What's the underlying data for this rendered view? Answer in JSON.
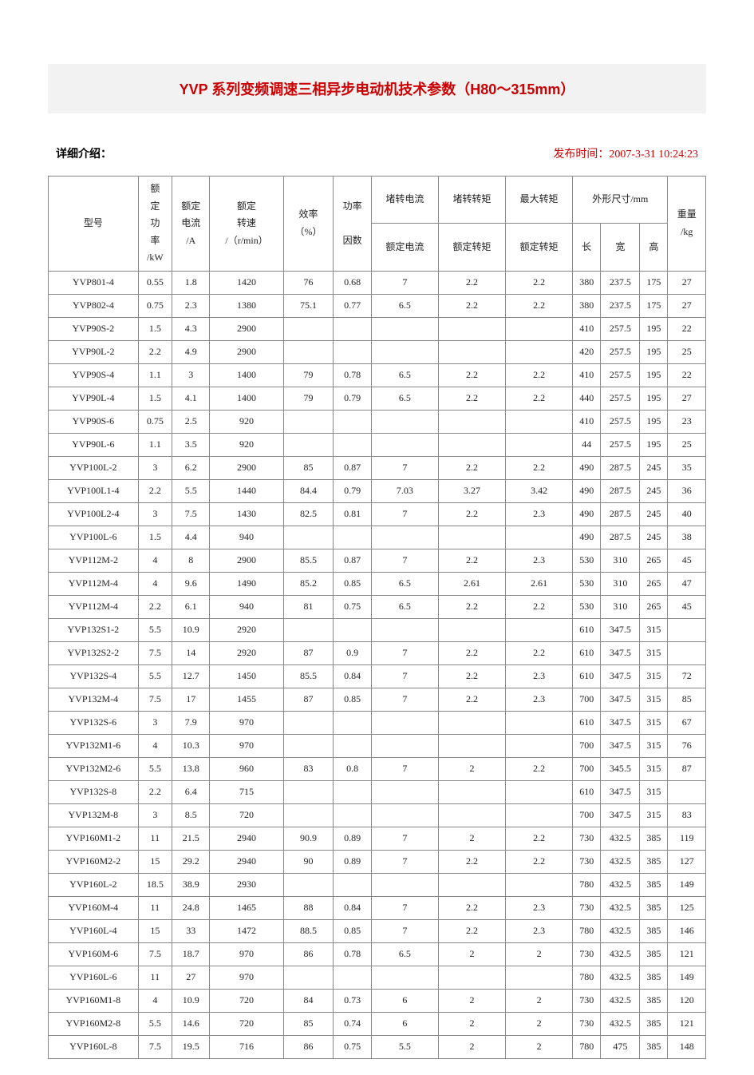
{
  "title": "YVP 系列变频调速三相异步电动机技术参数（H80～315mm）",
  "meta": {
    "detail_label": "详细介绍：",
    "publish_label": "发布时间：",
    "publish_time": "2007-3-31 10:24:23"
  },
  "colors": {
    "title_color": "#cc0000",
    "title_bg": "#f2f2f2",
    "meta_right_color": "#cc0000",
    "border_color": "#888888",
    "text_color": "#222222",
    "background": "#ffffff"
  },
  "fonts": {
    "title_fontsize": 18,
    "body_fontsize": 13,
    "table_fontsize": 12
  },
  "headers": {
    "model": "型号",
    "rated_power": "额定功率/kW",
    "rated_current": "额定电流/A",
    "rated_speed": "额定转速/（r/min）",
    "efficiency": "效率（%）",
    "power_factor": "功率因数",
    "locked_current_ratio": "堵转电流",
    "locked_torque_ratio": "堵转转矩",
    "max_torque_ratio": "最大转矩",
    "ratio_sub1": "额定电流",
    "ratio_sub2": "额定转矩",
    "ratio_sub3": "额定转矩",
    "dims": "外形尺寸/mm",
    "length": "长",
    "width": "宽",
    "height": "高",
    "weight": "重量/kg"
  },
  "rows": [
    {
      "model": "YVP801-4",
      "kw": "0.55",
      "a": "1.8",
      "rpm": "1420",
      "eff": "76",
      "pf": "0.68",
      "lc": "7",
      "lt": "2.2",
      "mt": "2.2",
      "l": "380",
      "w": "237.5",
      "h": "175",
      "kg": "27"
    },
    {
      "model": "YVP802-4",
      "kw": "0.75",
      "a": "2.3",
      "rpm": "1380",
      "eff": "75.1",
      "pf": "0.77",
      "lc": "6.5",
      "lt": "2.2",
      "mt": "2.2",
      "l": "380",
      "w": "237.5",
      "h": "175",
      "kg": "27"
    },
    {
      "model": "YVP90S-2",
      "kw": "1.5",
      "a": "4.3",
      "rpm": "2900",
      "eff": "",
      "pf": "",
      "lc": "",
      "lt": "",
      "mt": "",
      "l": "410",
      "w": "257.5",
      "h": "195",
      "kg": "22"
    },
    {
      "model": "YVP90L-2",
      "kw": "2.2",
      "a": "4.9",
      "rpm": "2900",
      "eff": "",
      "pf": "",
      "lc": "",
      "lt": "",
      "mt": "",
      "l": "420",
      "w": "257.5",
      "h": "195",
      "kg": "25"
    },
    {
      "model": "YVP90S-4",
      "kw": "1.1",
      "a": "3",
      "rpm": "1400",
      "eff": "79",
      "pf": "0.78",
      "lc": "6.5",
      "lt": "2.2",
      "mt": "2.2",
      "l": "410",
      "w": "257.5",
      "h": "195",
      "kg": "22"
    },
    {
      "model": "YVP90L-4",
      "kw": "1.5",
      "a": "4.1",
      "rpm": "1400",
      "eff": "79",
      "pf": "0.79",
      "lc": "6.5",
      "lt": "2.2",
      "mt": "2.2",
      "l": "440",
      "w": "257.5",
      "h": "195",
      "kg": "27"
    },
    {
      "model": "YVP90S-6",
      "kw": "0.75",
      "a": "2.5",
      "rpm": "920",
      "eff": "",
      "pf": "",
      "lc": "",
      "lt": "",
      "mt": "",
      "l": "410",
      "w": "257.5",
      "h": "195",
      "kg": "23"
    },
    {
      "model": "YVP90L-6",
      "kw": "1.1",
      "a": "3.5",
      "rpm": "920",
      "eff": "",
      "pf": "",
      "lc": "",
      "lt": "",
      "mt": "",
      "l": "44",
      "w": "257.5",
      "h": "195",
      "kg": "25"
    },
    {
      "model": "YVP100L-2",
      "kw": "3",
      "a": "6.2",
      "rpm": "2900",
      "eff": "85",
      "pf": "0.87",
      "lc": "7",
      "lt": "2.2",
      "mt": "2.2",
      "l": "490",
      "w": "287.5",
      "h": "245",
      "kg": "35"
    },
    {
      "model": "YVP100L1-4",
      "kw": "2.2",
      "a": "5.5",
      "rpm": "1440",
      "eff": "84.4",
      "pf": "0.79",
      "lc": "7.03",
      "lt": "3.27",
      "mt": "3.42",
      "l": "490",
      "w": "287.5",
      "h": "245",
      "kg": "36"
    },
    {
      "model": "YVP100L2-4",
      "kw": "3",
      "a": "7.5",
      "rpm": "1430",
      "eff": "82.5",
      "pf": "0.81",
      "lc": "7",
      "lt": "2.2",
      "mt": "2.3",
      "l": "490",
      "w": "287.5",
      "h": "245",
      "kg": "40"
    },
    {
      "model": "YVP100L-6",
      "kw": "1.5",
      "a": "4.4",
      "rpm": "940",
      "eff": "",
      "pf": "",
      "lc": "",
      "lt": "",
      "mt": "",
      "l": "490",
      "w": "287.5",
      "h": "245",
      "kg": "38"
    },
    {
      "model": "YVP112M-2",
      "kw": "4",
      "a": "8",
      "rpm": "2900",
      "eff": "85.5",
      "pf": "0.87",
      "lc": "7",
      "lt": "2.2",
      "mt": "2.3",
      "l": "530",
      "w": "310",
      "h": "265",
      "kg": "45"
    },
    {
      "model": "YVP112M-4",
      "kw": "4",
      "a": "9.6",
      "rpm": "1490",
      "eff": "85.2",
      "pf": "0.85",
      "lc": "6.5",
      "lt": "2.61",
      "mt": "2.61",
      "l": "530",
      "w": "310",
      "h": "265",
      "kg": "47"
    },
    {
      "model": "YVP112M-4",
      "kw": "2.2",
      "a": "6.1",
      "rpm": "940",
      "eff": "81",
      "pf": "0.75",
      "lc": "6.5",
      "lt": "2.2",
      "mt": "2.2",
      "l": "530",
      "w": "310",
      "h": "265",
      "kg": "45"
    },
    {
      "model": "YVP132S1-2",
      "kw": "5.5",
      "a": "10.9",
      "rpm": "2920",
      "eff": "",
      "pf": "",
      "lc": "",
      "lt": "",
      "mt": "",
      "l": "610",
      "w": "347.5",
      "h": "315",
      "kg": ""
    },
    {
      "model": "YVP132S2-2",
      "kw": "7.5",
      "a": "14",
      "rpm": "2920",
      "eff": "87",
      "pf": "0.9",
      "lc": "7",
      "lt": "2.2",
      "mt": "2.2",
      "l": "610",
      "w": "347.5",
      "h": "315",
      "kg": ""
    },
    {
      "model": "YVP132S-4",
      "kw": "5.5",
      "a": "12.7",
      "rpm": "1450",
      "eff": "85.5",
      "pf": "0.84",
      "lc": "7",
      "lt": "2.2",
      "mt": "2.3",
      "l": "610",
      "w": "347.5",
      "h": "315",
      "kg": "72"
    },
    {
      "model": "YVP132M-4",
      "kw": "7.5",
      "a": "17",
      "rpm": "1455",
      "eff": "87",
      "pf": "0.85",
      "lc": "7",
      "lt": "2.2",
      "mt": "2.3",
      "l": "700",
      "w": "347.5",
      "h": "315",
      "kg": "85"
    },
    {
      "model": "YVP132S-6",
      "kw": "3",
      "a": "7.9",
      "rpm": "970",
      "eff": "",
      "pf": "",
      "lc": "",
      "lt": "",
      "mt": "",
      "l": "610",
      "w": "347.5",
      "h": "315",
      "kg": "67"
    },
    {
      "model": "YVP132M1-6",
      "kw": "4",
      "a": "10.3",
      "rpm": "970",
      "eff": "",
      "pf": "",
      "lc": "",
      "lt": "",
      "mt": "",
      "l": "700",
      "w": "347.5",
      "h": "315",
      "kg": "76"
    },
    {
      "model": "YVP132M2-6",
      "kw": "5.5",
      "a": "13.8",
      "rpm": "960",
      "eff": "83",
      "pf": "0.8",
      "lc": "7",
      "lt": "2",
      "mt": "2.2",
      "l": "700",
      "w": "345.5",
      "h": "315",
      "kg": "87"
    },
    {
      "model": "YVP132S-8",
      "kw": "2.2",
      "a": "6.4",
      "rpm": "715",
      "eff": "",
      "pf": "",
      "lc": "",
      "lt": "",
      "mt": "",
      "l": "610",
      "w": "347.5",
      "h": "315",
      "kg": ""
    },
    {
      "model": "YVP132M-8",
      "kw": "3",
      "a": "8.5",
      "rpm": "720",
      "eff": "",
      "pf": "",
      "lc": "",
      "lt": "",
      "mt": "",
      "l": "700",
      "w": "347.5",
      "h": "315",
      "kg": "83"
    },
    {
      "model": "YVP160M1-2",
      "kw": "11",
      "a": "21.5",
      "rpm": "2940",
      "eff": "90.9",
      "pf": "0.89",
      "lc": "7",
      "lt": "2",
      "mt": "2.2",
      "l": "730",
      "w": "432.5",
      "h": "385",
      "kg": "119"
    },
    {
      "model": "YVP160M2-2",
      "kw": "15",
      "a": "29.2",
      "rpm": "2940",
      "eff": "90",
      "pf": "0.89",
      "lc": "7",
      "lt": "2.2",
      "mt": "2.2",
      "l": "730",
      "w": "432.5",
      "h": "385",
      "kg": "127"
    },
    {
      "model": "YVP160L-2",
      "kw": "18.5",
      "a": "38.9",
      "rpm": "2930",
      "eff": "",
      "pf": "",
      "lc": "",
      "lt": "",
      "mt": "",
      "l": "780",
      "w": "432.5",
      "h": "385",
      "kg": "149"
    },
    {
      "model": "YVP160M-4",
      "kw": "11",
      "a": "24.8",
      "rpm": "1465",
      "eff": "88",
      "pf": "0.84",
      "lc": "7",
      "lt": "2.2",
      "mt": "2.3",
      "l": "730",
      "w": "432.5",
      "h": "385",
      "kg": "125"
    },
    {
      "model": "YVP160L-4",
      "kw": "15",
      "a": "33",
      "rpm": "1472",
      "eff": "88.5",
      "pf": "0.85",
      "lc": "7",
      "lt": "2.2",
      "mt": "2.3",
      "l": "780",
      "w": "432.5",
      "h": "385",
      "kg": "146"
    },
    {
      "model": "YVP160M-6",
      "kw": "7.5",
      "a": "18.7",
      "rpm": "970",
      "eff": "86",
      "pf": "0.78",
      "lc": "6.5",
      "lt": "2",
      "mt": "2",
      "l": "730",
      "w": "432.5",
      "h": "385",
      "kg": "121"
    },
    {
      "model": "YVP160L-6",
      "kw": "11",
      "a": "27",
      "rpm": "970",
      "eff": "",
      "pf": "",
      "lc": "",
      "lt": "",
      "mt": "",
      "l": "780",
      "w": "432.5",
      "h": "385",
      "kg": "149"
    },
    {
      "model": "YVP160M1-8",
      "kw": "4",
      "a": "10.9",
      "rpm": "720",
      "eff": "84",
      "pf": "0.73",
      "lc": "6",
      "lt": "2",
      "mt": "2",
      "l": "730",
      "w": "432.5",
      "h": "385",
      "kg": "120"
    },
    {
      "model": "YVP160M2-8",
      "kw": "5.5",
      "a": "14.6",
      "rpm": "720",
      "eff": "85",
      "pf": "0.74",
      "lc": "6",
      "lt": "2",
      "mt": "2",
      "l": "730",
      "w": "432.5",
      "h": "385",
      "kg": "121"
    },
    {
      "model": "YVP160L-8",
      "kw": "7.5",
      "a": "19.5",
      "rpm": "716",
      "eff": "86",
      "pf": "0.75",
      "lc": "5.5",
      "lt": "2",
      "mt": "2",
      "l": "780",
      "w": "475",
      "h": "385",
      "kg": "148"
    }
  ]
}
